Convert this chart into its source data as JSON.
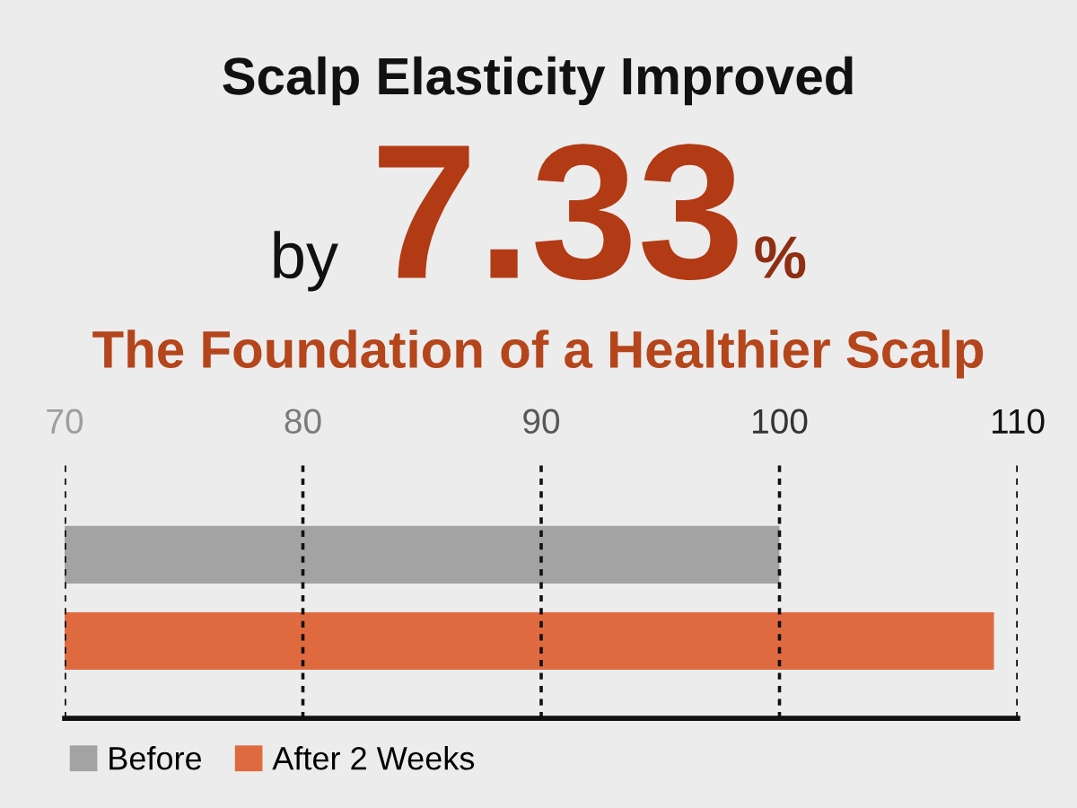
{
  "chart_data": {
    "type": "bar",
    "orientation": "horizontal",
    "title": "Scalp Elasticity Improved",
    "subtitle": "The Foundation of a Healthier Scalp",
    "annotations": [
      "by 7.33%"
    ],
    "categories": [
      null
    ],
    "series": [
      {
        "name": "Before",
        "color": "#a3a3a3",
        "values": [
          100
        ]
      },
      {
        "name": "After 2 Weeks",
        "color": "#e06a40",
        "values": [
          109
        ]
      }
    ],
    "xlim": [
      70,
      110
    ],
    "xticks": [
      70,
      80,
      90,
      100,
      110
    ],
    "grid": "x",
    "legend": "bottom left"
  }
}
